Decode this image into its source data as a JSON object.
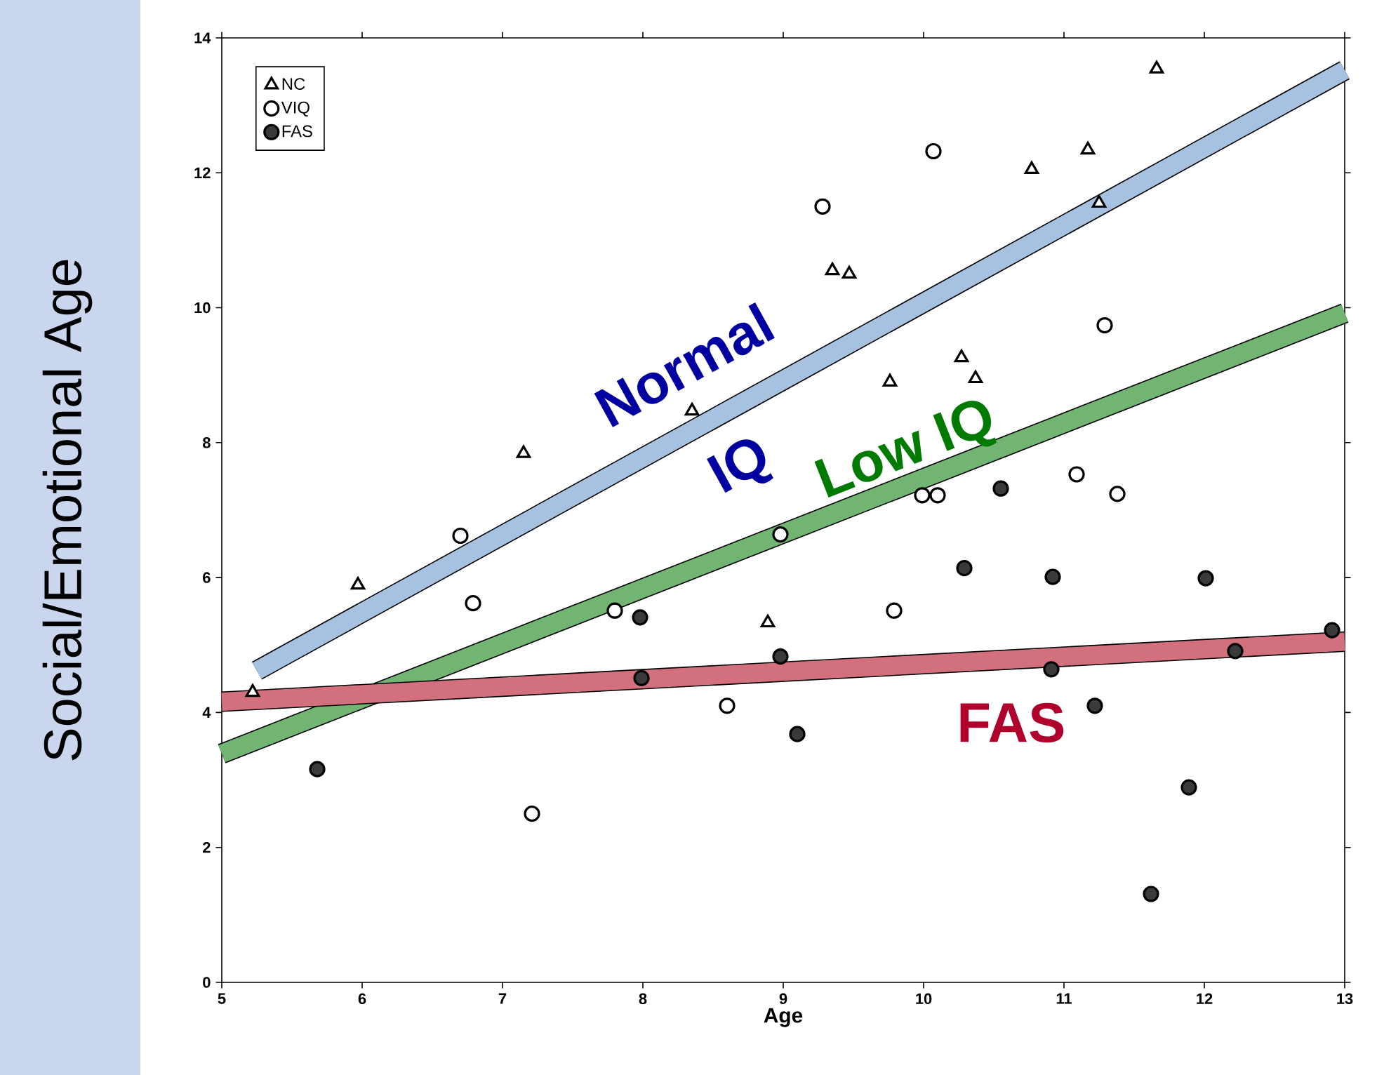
{
  "chart_data": {
    "type": "scatter",
    "xlabel": "Age",
    "ylabel": "Social/Emotional Age",
    "xlim": [
      5,
      13
    ],
    "ylim": [
      0,
      14
    ],
    "xticks": [
      5,
      6,
      7,
      8,
      9,
      10,
      11,
      12,
      13
    ],
    "yticks": [
      0,
      2,
      4,
      6,
      8,
      10,
      12,
      14
    ],
    "legend": "top left",
    "grid": false,
    "series": [
      {
        "name": "NC",
        "color": "#ffffff",
        "marker": "triangle",
        "x": [
          5.22,
          5.97,
          7.15,
          8.35,
          8.89,
          9.35,
          9.47,
          9.76,
          10.27,
          10.37,
          10.77,
          11.17,
          11.25,
          11.66
        ],
        "values": [
          4.3,
          5.89,
          7.84,
          8.47,
          5.33,
          10.55,
          10.5,
          8.9,
          9.26,
          8.95,
          12.05,
          12.34,
          11.55,
          13.54
        ]
      },
      {
        "name": "VIQ",
        "color": "#ffffff",
        "marker": "circle",
        "x": [
          6.7,
          6.79,
          7.21,
          7.8,
          8.6,
          8.98,
          9.28,
          9.79,
          9.99,
          10.07,
          10.1,
          11.09,
          11.29,
          11.38
        ],
        "values": [
          6.62,
          5.62,
          2.5,
          5.51,
          4.1,
          6.64,
          11.5,
          5.51,
          7.22,
          12.32,
          7.22,
          7.53,
          9.74,
          7.24
        ]
      },
      {
        "name": "FAS",
        "color": "#3a3a3a",
        "marker": "circle",
        "x": [
          5.68,
          7.98,
          7.99,
          8.98,
          9.1,
          10.29,
          10.55,
          10.91,
          10.92,
          11.22,
          11.62,
          11.89,
          12.01,
          12.22,
          12.91
        ],
        "values": [
          3.16,
          5.41,
          4.51,
          4.83,
          3.68,
          6.14,
          7.32,
          4.64,
          6.01,
          4.1,
          1.31,
          2.89,
          5.99,
          4.91,
          5.22
        ]
      },
      {
        "name": "Normal IQ",
        "type": "line",
        "color": "#a7c1e0",
        "x": [
          5.25,
          13
        ],
        "values": [
          4.62,
          13.52
        ]
      },
      {
        "name": "Low IQ",
        "type": "line",
        "color": "#72b472",
        "x": [
          5,
          13
        ],
        "values": [
          3.39,
          9.92
        ]
      },
      {
        "name": "FAS",
        "type": "line",
        "color": "#d2707e",
        "x": [
          5,
          13
        ],
        "values": [
          4.16,
          5.05
        ]
      }
    ]
  }
}
